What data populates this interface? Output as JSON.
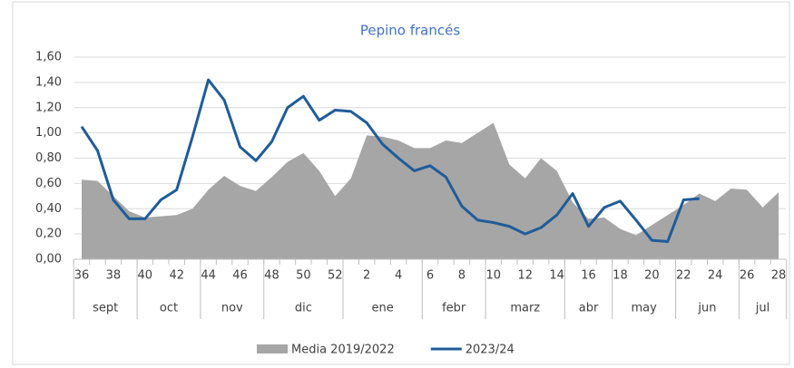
{
  "chart_data": {
    "type": "line",
    "title": "Pepino francés",
    "categories": [
      "36",
      null,
      "38",
      null,
      "40",
      null,
      "42",
      null,
      "44",
      null,
      "46",
      null,
      "48",
      null,
      "50",
      null,
      "52",
      null,
      "2",
      null,
      "4",
      null,
      "6",
      null,
      "8",
      null,
      "10",
      null,
      "12",
      null,
      "14",
      null,
      "16",
      null,
      "18",
      null,
      "20",
      null,
      "22",
      null,
      "24",
      null,
      "26",
      null,
      "28"
    ],
    "month_groups": [
      {
        "label": "sept",
        "span": 4
      },
      {
        "label": "oct",
        "span": 4
      },
      {
        "label": "nov",
        "span": 4
      },
      {
        "label": "dic",
        "span": 5
      },
      {
        "label": "ene",
        "span": 5
      },
      {
        "label": "febr",
        "span": 4
      },
      {
        "label": "marz",
        "span": 5
      },
      {
        "label": "abr",
        "span": 3
      },
      {
        "label": "may",
        "span": 4
      },
      {
        "label": "jun",
        "span": 4
      },
      {
        "label": "jul",
        "span": 3
      }
    ],
    "series": [
      {
        "name": "Media 2019/2022",
        "type": "area",
        "color": "#a6a6a6",
        "values": [
          0.63,
          0.62,
          0.5,
          0.38,
          0.33,
          0.34,
          0.35,
          0.4,
          0.55,
          0.66,
          0.58,
          0.54,
          0.65,
          0.77,
          0.84,
          0.7,
          0.5,
          0.64,
          0.98,
          0.97,
          0.94,
          0.88,
          0.88,
          0.94,
          0.92,
          1.0,
          1.08,
          0.75,
          0.64,
          0.8,
          0.7,
          0.45,
          0.32,
          0.33,
          0.24,
          0.19,
          0.27,
          0.35,
          0.43,
          0.52,
          0.46,
          0.56,
          0.55,
          0.41,
          0.53
        ]
      },
      {
        "name": "2023/24",
        "type": "line",
        "color": "#1f5c99",
        "values": [
          1.05,
          0.86,
          0.47,
          0.32,
          0.32,
          0.47,
          0.55,
          0.97,
          1.42,
          1.26,
          0.89,
          0.78,
          0.93,
          1.2,
          1.29,
          1.1,
          1.18,
          1.17,
          1.08,
          0.91,
          0.8,
          0.7,
          0.74,
          0.65,
          0.42,
          0.31,
          0.29,
          0.26,
          0.2,
          0.25,
          0.35,
          0.52,
          0.26,
          0.41,
          0.46,
          0.31,
          0.15,
          0.14,
          0.47,
          0.48,
          null,
          null,
          null,
          null,
          null
        ]
      }
    ],
    "ylim": [
      0,
      1.6
    ],
    "yticks": [
      {
        "value": 0,
        "label": "0,00"
      },
      {
        "value": 0.2,
        "label": "0,20"
      },
      {
        "value": 0.4,
        "label": "0,40"
      },
      {
        "value": 0.6,
        "label": "0,60"
      },
      {
        "value": 0.8,
        "label": "0,80"
      },
      {
        "value": 1.0,
        "label": "1,00"
      },
      {
        "value": 1.2,
        "label": "1,20"
      },
      {
        "value": 1.4,
        "label": "1,40"
      },
      {
        "value": 1.6,
        "label": "1,60"
      }
    ],
    "grid": true,
    "legend": "bottom"
  }
}
